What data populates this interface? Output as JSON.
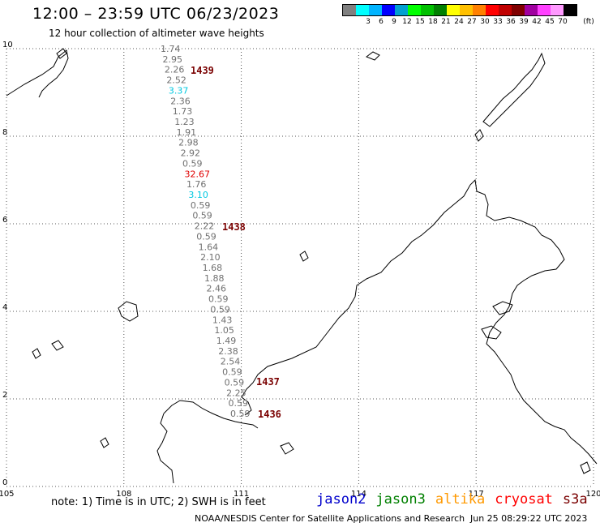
{
  "header": {
    "title": "12:00 – 23:59 UTC 06/23/2023",
    "subtitle": "12 hour collection of altimeter wave heights"
  },
  "legend": {
    "unit": "(ft)",
    "swatches": [
      {
        "color": "#808080",
        "label": ""
      },
      {
        "color": "#00ffff",
        "label": "3"
      },
      {
        "color": "#00b4ff",
        "label": "6"
      },
      {
        "color": "#0000ff",
        "label": "9"
      },
      {
        "color": "#00a0d0",
        "label": "12"
      },
      {
        "color": "#00ff00",
        "label": "15"
      },
      {
        "color": "#00c000",
        "label": "18"
      },
      {
        "color": "#008000",
        "label": "21"
      },
      {
        "color": "#ffff00",
        "label": "24"
      },
      {
        "color": "#ffc000",
        "label": "27"
      },
      {
        "color": "#ff8000",
        "label": "30"
      },
      {
        "color": "#ff0000",
        "label": "33"
      },
      {
        "color": "#c00000",
        "label": "36"
      },
      {
        "color": "#800000",
        "label": "39"
      },
      {
        "color": "#a000a0",
        "label": "42"
      },
      {
        "color": "#ff40ff",
        "label": "45"
      },
      {
        "color": "#ff99ff",
        "label": "70"
      },
      {
        "color": "#000000",
        "label": ""
      }
    ]
  },
  "map": {
    "lon_ticks": [
      "105",
      "108",
      "111",
      "114",
      "117",
      "120"
    ],
    "lat_ticks": [
      "0",
      "2",
      "4",
      "6",
      "8",
      "10"
    ],
    "lon_range": [
      105,
      120
    ],
    "lat_range": [
      0,
      10
    ],
    "coast_color": "#000000",
    "grid_color": "#555555"
  },
  "swh_track": [
    {
      "value": "1.74",
      "color": "#707070"
    },
    {
      "value": "2.95",
      "color": "#707070"
    },
    {
      "value": "2.26",
      "color": "#707070"
    },
    {
      "value": "2.52",
      "color": "#707070"
    },
    {
      "value": "3.37",
      "color": "#00c8e0"
    },
    {
      "value": "2.36",
      "color": "#707070"
    },
    {
      "value": "1.73",
      "color": "#707070"
    },
    {
      "value": "1.23",
      "color": "#707070"
    },
    {
      "value": "1.91",
      "color": "#707070"
    },
    {
      "value": "2.98",
      "color": "#707070"
    },
    {
      "value": "2.92",
      "color": "#707070"
    },
    {
      "value": "0.59",
      "color": "#707070"
    },
    {
      "value": "32.67",
      "color": "#e00000"
    },
    {
      "value": "1.76",
      "color": "#707070"
    },
    {
      "value": "3.10",
      "color": "#00c8e0"
    },
    {
      "value": "0.59",
      "color": "#707070"
    },
    {
      "value": "0.59",
      "color": "#707070"
    },
    {
      "value": "2.22",
      "color": "#707070"
    },
    {
      "value": "0.59",
      "color": "#707070"
    },
    {
      "value": "1.64",
      "color": "#707070"
    },
    {
      "value": "2.10",
      "color": "#707070"
    },
    {
      "value": "1.68",
      "color": "#707070"
    },
    {
      "value": "1.88",
      "color": "#707070"
    },
    {
      "value": "2.46",
      "color": "#707070"
    },
    {
      "value": "0.59",
      "color": "#707070"
    },
    {
      "value": "0.59",
      "color": "#707070"
    },
    {
      "value": "1.43",
      "color": "#707070"
    },
    {
      "value": "1.05",
      "color": "#707070"
    },
    {
      "value": "1.49",
      "color": "#707070"
    },
    {
      "value": "2.38",
      "color": "#707070"
    },
    {
      "value": "2.54",
      "color": "#707070"
    },
    {
      "value": "0.59",
      "color": "#707070"
    },
    {
      "value": "0.59",
      "color": "#707070"
    },
    {
      "value": "2.25",
      "color": "#707070"
    },
    {
      "value": "0.59",
      "color": "#707070"
    },
    {
      "value": "0.59",
      "color": "#707070"
    }
  ],
  "time_labels": [
    "1439",
    "1438",
    "1437",
    "1436"
  ],
  "footer": {
    "note": "note:  1) Time is in UTC;  2) SWH is in feet",
    "satellites": [
      {
        "name": "jason2",
        "color": "#0000cc"
      },
      {
        "name": "jason3",
        "color": "#008000"
      },
      {
        "name": "altika",
        "color": "#ff9900"
      },
      {
        "name": "cryosat",
        "color": "#ff0000"
      },
      {
        "name": "s3a",
        "color": "#7a0000"
      }
    ],
    "credit": "NOAA/NESDIS Center for Satellite Applications and Research",
    "timestamp": "Jun 25 08:29:22 UTC 2023"
  }
}
